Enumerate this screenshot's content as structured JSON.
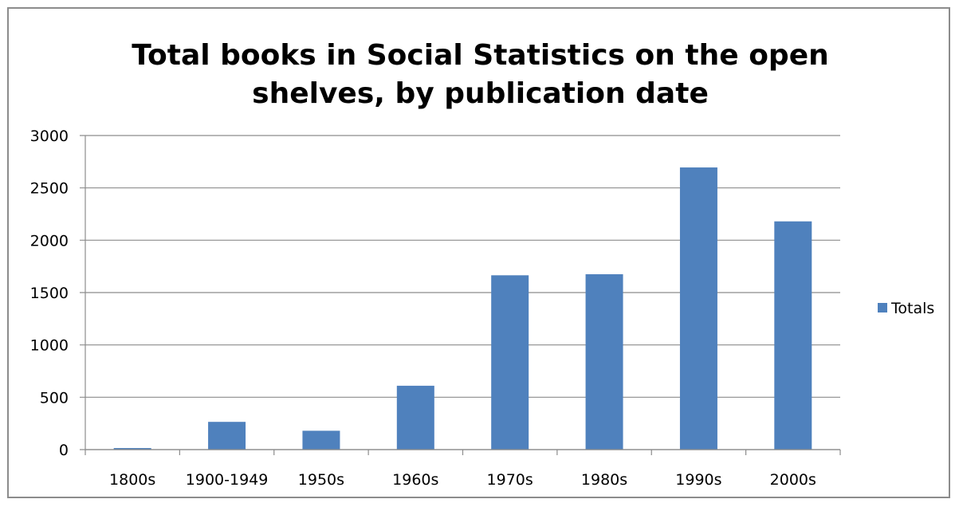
{
  "chart_data": {
    "type": "bar",
    "title": "Total books in Social Statistics on the open shelves, by publication date",
    "xlabel": "",
    "ylabel": "",
    "categories": [
      "1800s",
      "1900-1949",
      "1950s",
      "1960s",
      "1970s",
      "1980s",
      "1990s",
      "2000s"
    ],
    "series": [
      {
        "name": "Totals",
        "values": [
          15,
          265,
          180,
          610,
          1665,
          1675,
          2695,
          2180
        ]
      }
    ],
    "ylim": [
      0,
      3000
    ],
    "yticks": [
      0,
      500,
      1000,
      1500,
      2000,
      2500,
      3000
    ],
    "grid": true,
    "legend_position": "right",
    "colors": {
      "bar": "#4f81bd",
      "gridline": "#8c8c8c",
      "axis": "#8c8c8c"
    }
  }
}
